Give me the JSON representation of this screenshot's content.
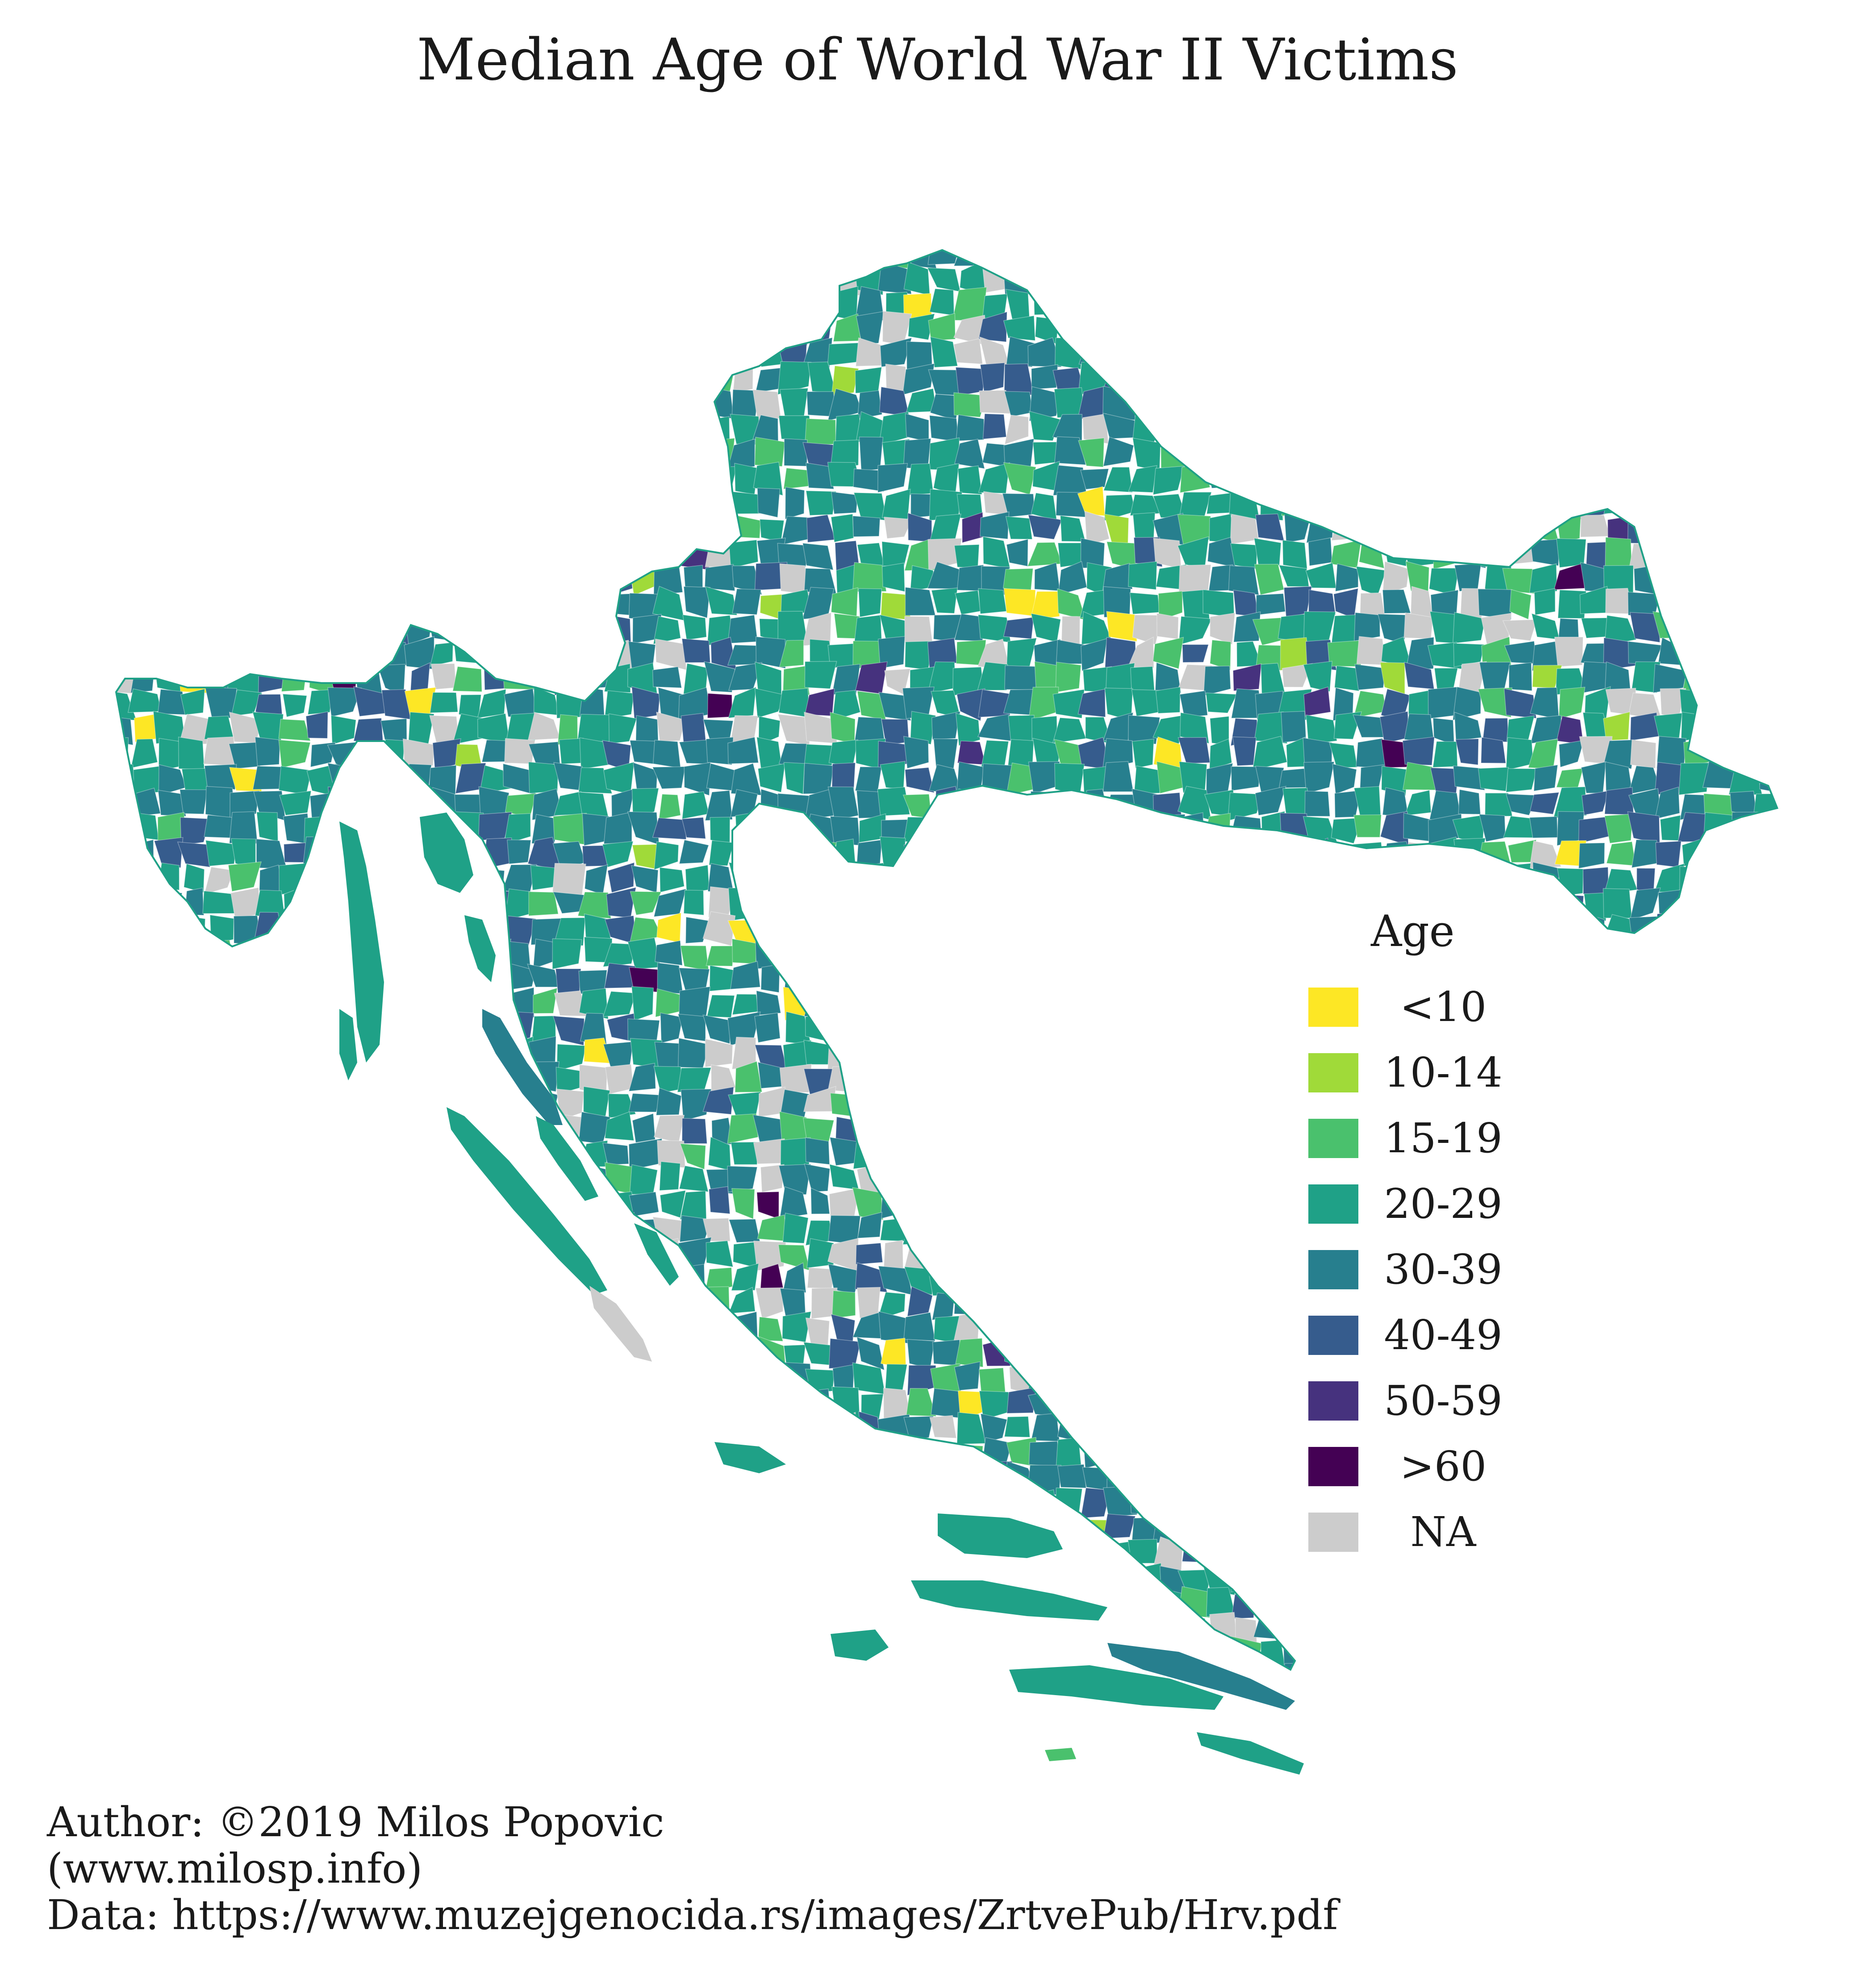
{
  "title": "Median Age of World War II Victims",
  "legend": {
    "title": "Age",
    "items": [
      {
        "label": "<10",
        "color": "#fde725"
      },
      {
        "label": "10-14",
        "color": "#a0da39"
      },
      {
        "label": "15-19",
        "color": "#4ac16d"
      },
      {
        "label": "20-29",
        "color": "#1fa187"
      },
      {
        "label": "30-39",
        "color": "#277f8e"
      },
      {
        "label": "40-49",
        "color": "#365c8d"
      },
      {
        "label": "50-59",
        "color": "#46327e"
      },
      {
        "label": ">60",
        "color": "#440154"
      },
      {
        "label": "NA",
        "color": "#cccccc"
      }
    ]
  },
  "credits": {
    "author": "Author: ©2019 Milos Popovic",
    "website": "(www.milosp.info)",
    "data": "Data: https://www.muzejgenocida.rs/images/ZrtvePub/Hrv.pdf"
  }
}
